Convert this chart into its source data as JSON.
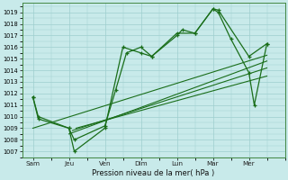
{
  "xlabel": "Pression niveau de la mer( hPa )",
  "bg_color": "#c8eaea",
  "grid_color": "#9ecece",
  "line_color": "#1a6e1a",
  "ylim": [
    1006.5,
    1019.8
  ],
  "yticks": [
    1007,
    1008,
    1009,
    1010,
    1011,
    1012,
    1013,
    1014,
    1015,
    1016,
    1017,
    1018,
    1019
  ],
  "x_labels": [
    "Sam",
    "Jeu",
    "Ven",
    "Dim",
    "Lun",
    "Mar",
    "Mer"
  ],
  "x_ticks": [
    0,
    1,
    2,
    3,
    4,
    5,
    6
  ],
  "xlim": [
    -0.3,
    7.0
  ],
  "main_x": [
    0,
    0.15,
    1,
    1.15,
    2,
    2.3,
    2.6,
    3,
    3.3,
    4,
    4.15,
    4.5,
    5,
    5.15,
    6,
    6.5
  ],
  "main_y": [
    1011.7,
    1009.8,
    1009.0,
    1008.0,
    1009.2,
    1012.3,
    1015.5,
    1016.0,
    1015.2,
    1017.0,
    1017.5,
    1017.2,
    1019.3,
    1019.2,
    1015.2,
    1016.3
  ],
  "jagged_x": [
    0,
    0.15,
    1,
    1.15,
    2,
    2.5,
    3,
    3.3,
    4,
    4.5,
    5,
    5.15,
    5.5,
    6,
    6.15,
    6.5
  ],
  "jagged_y": [
    1011.7,
    1010.0,
    1009.0,
    1007.0,
    1009.0,
    1016.0,
    1015.5,
    1015.2,
    1017.2,
    1017.2,
    1019.3,
    1019.0,
    1016.7,
    1013.8,
    1011.0,
    1016.3
  ],
  "trend1_x": [
    0,
    6.5
  ],
  "trend1_y": [
    1009.0,
    1015.3
  ],
  "trend2_x": [
    1.0,
    6.5
  ],
  "trend2_y": [
    1008.5,
    1014.8
  ],
  "trend3_x": [
    1.1,
    6.5
  ],
  "trend3_y": [
    1008.8,
    1014.2
  ],
  "trend4_x": [
    1.2,
    6.5
  ],
  "trend4_y": [
    1009.0,
    1013.5
  ]
}
